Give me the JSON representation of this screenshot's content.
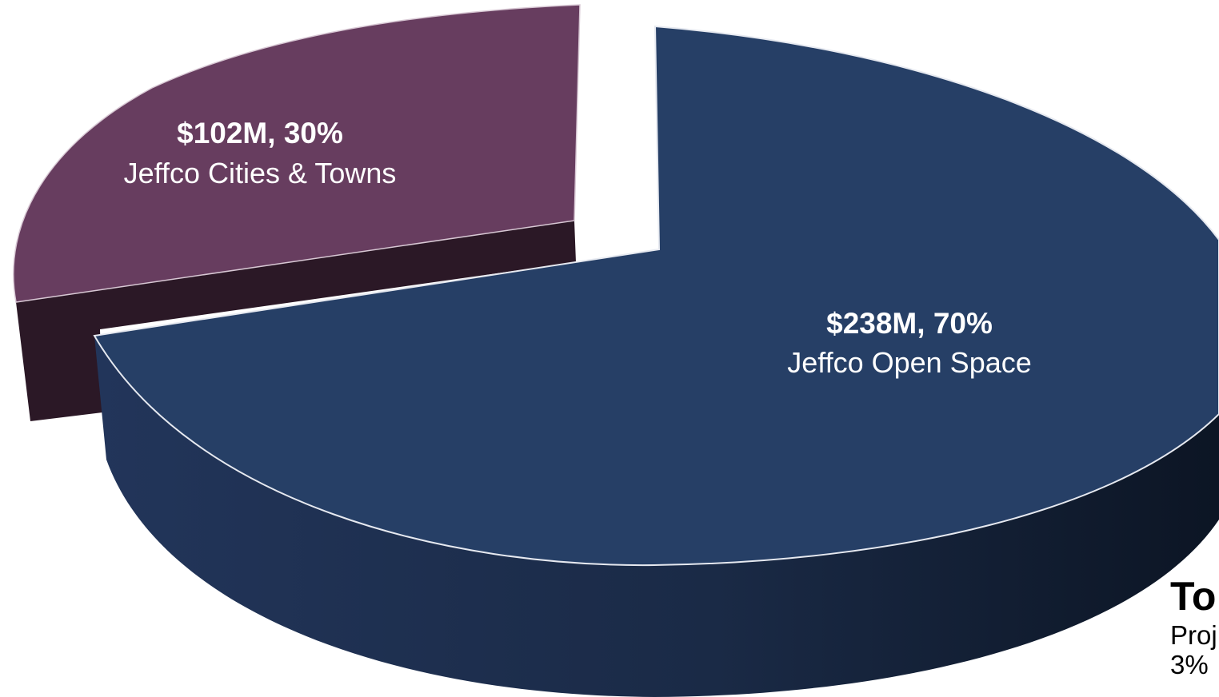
{
  "chart_data": {
    "type": "pie",
    "style": "3d-exploded",
    "title": "",
    "series": [
      {
        "values": [
          {
            "label": "Jeffco Open Space",
            "value_millions": 238,
            "percent": 70,
            "value_text": "$238M, 70%",
            "color": "#263f66"
          },
          {
            "label": "Jeffco Cities & Towns",
            "value_millions": 102,
            "percent": 30,
            "value_text": "$102M, 30%",
            "color": "#673d5f"
          }
        ]
      }
    ],
    "slices": [
      {
        "category": "Jeffco Open Space",
        "value_text": "$238M, 70%",
        "name": "Jeffco Open Space",
        "color": "#263f66",
        "side_color": "#1a2c49"
      },
      {
        "category": "Jeffco Cities & Towns",
        "value_text": "$102M, 30%",
        "name": "Jeffco Cities & Towns",
        "color": "#673d5f",
        "side_color": "#2b1826"
      }
    ]
  },
  "total_note": {
    "title": "To",
    "lines": [
      "Proj",
      "3%"
    ]
  }
}
